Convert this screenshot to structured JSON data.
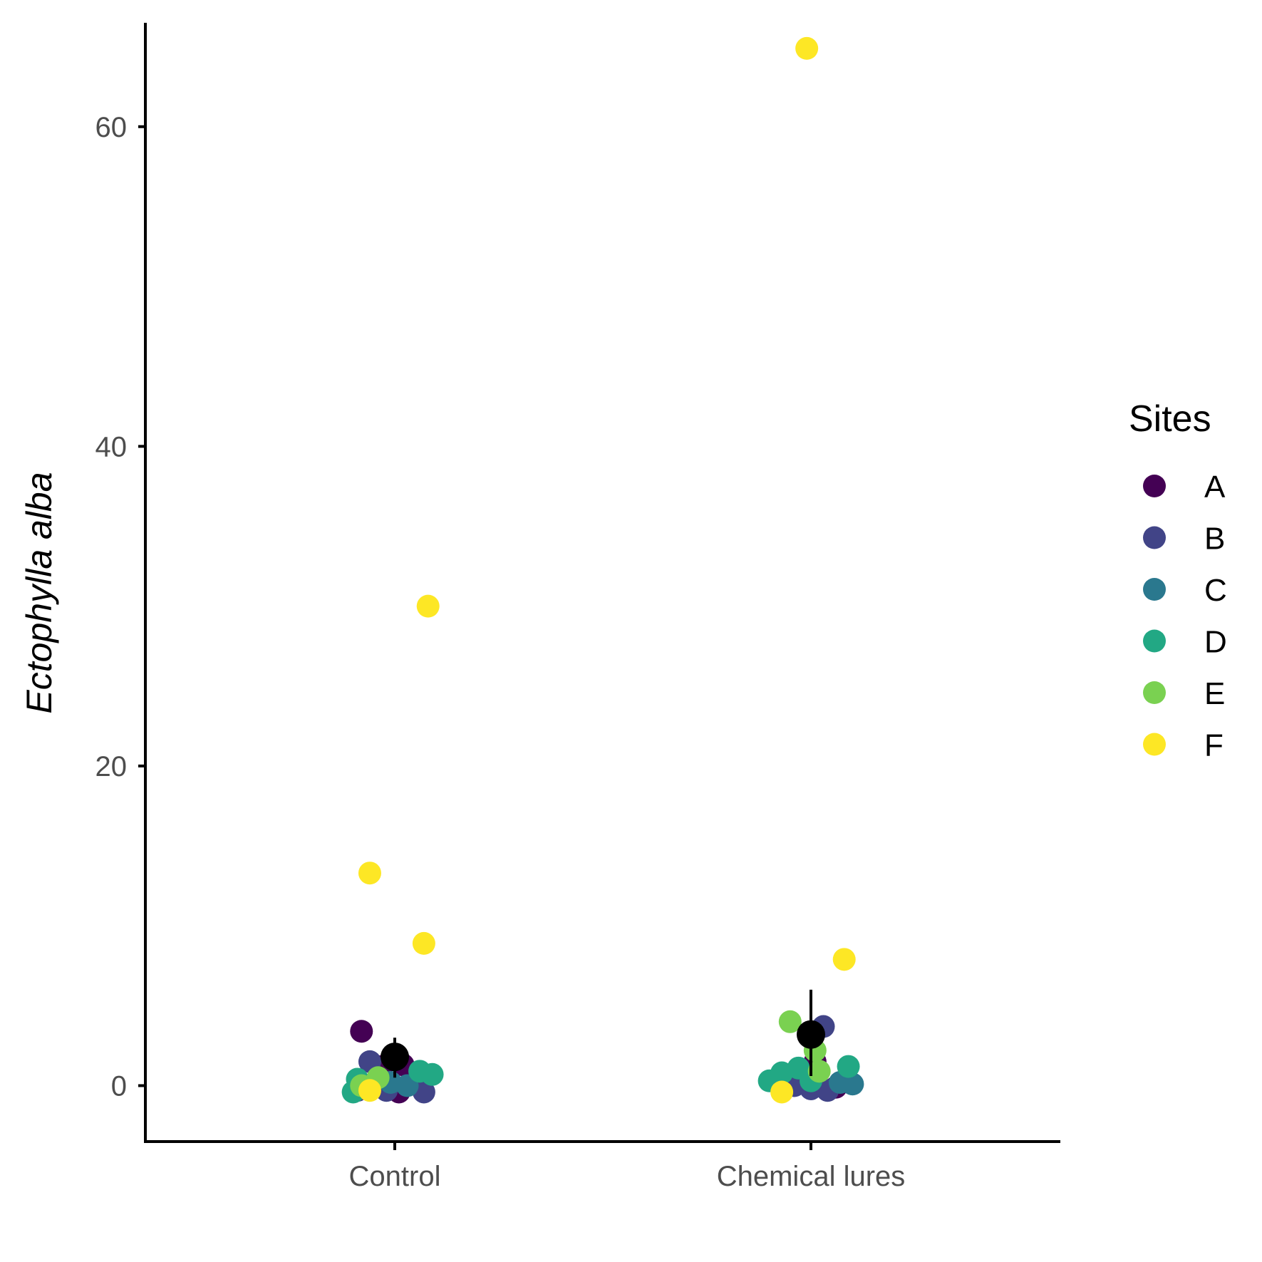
{
  "chart_data": {
    "type": "scatter",
    "title": "",
    "xlabel": "",
    "ylabel": "Ectophylla alba",
    "categories": [
      "Control",
      "Chemical lures"
    ],
    "ylim": [
      -3.5,
      66.5
    ],
    "yticks": [
      0,
      20,
      40,
      60
    ],
    "grid": false,
    "legend": {
      "title": "Sites",
      "placement": "right",
      "entries": [
        {
          "name": "A",
          "color": "#440154"
        },
        {
          "name": "B",
          "color": "#414487"
        },
        {
          "name": "C",
          "color": "#2A788E"
        },
        {
          "name": "D",
          "color": "#22A884"
        },
        {
          "name": "E",
          "color": "#7AD151"
        },
        {
          "name": "F",
          "color": "#FDE725"
        }
      ]
    },
    "series": [
      {
        "name": "A",
        "color": "#440154",
        "points": [
          {
            "x": -0.08,
            "y": 3.4
          },
          {
            "x": -0.03,
            "y": 1.2
          },
          {
            "x": 0.01,
            "y": -0.4
          },
          {
            "x": 0.02,
            "y": 1.3
          },
          {
            "x": 1.01,
            "y": 1.5
          },
          {
            "x": 1.06,
            "y": -0.1
          }
        ]
      },
      {
        "name": "B",
        "color": "#414487",
        "points": [
          {
            "x": -0.06,
            "y": 1.5
          },
          {
            "x": -0.09,
            "y": -0.3
          },
          {
            "x": -0.02,
            "y": -0.3
          },
          {
            "x": 0.07,
            "y": -0.4
          },
          {
            "x": 1.03,
            "y": 3.7
          },
          {
            "x": 0.96,
            "y": 0.0
          },
          {
            "x": 1.0,
            "y": -0.2
          },
          {
            "x": 1.04,
            "y": -0.3
          }
        ]
      },
      {
        "name": "C",
        "color": "#2A788E",
        "points": [
          {
            "x": 0.03,
            "y": 0.0
          },
          {
            "x": -0.01,
            "y": 0.2
          },
          {
            "x": 1.1,
            "y": 0.1
          },
          {
            "x": 1.07,
            "y": 0.2
          }
        ]
      },
      {
        "name": "D",
        "color": "#22A884",
        "points": [
          {
            "x": -0.1,
            "y": -0.4
          },
          {
            "x": 0.06,
            "y": 0.9
          },
          {
            "x": 0.09,
            "y": 0.7
          },
          {
            "x": -0.09,
            "y": 0.4
          },
          {
            "x": 0.93,
            "y": 0.8
          },
          {
            "x": 0.9,
            "y": 0.3
          },
          {
            "x": 0.97,
            "y": 1.1
          },
          {
            "x": 1.09,
            "y": 1.2
          },
          {
            "x": 1.0,
            "y": 0.3
          }
        ]
      },
      {
        "name": "E",
        "color": "#7AD151",
        "points": [
          {
            "x": -0.04,
            "y": 0.5
          },
          {
            "x": -0.08,
            "y": 0.0
          },
          {
            "x": 0.95,
            "y": 4.0
          },
          {
            "x": 1.01,
            "y": 2.2
          },
          {
            "x": 1.02,
            "y": 0.9
          }
        ]
      },
      {
        "name": "F",
        "color": "#FDE725",
        "points": [
          {
            "x": 0.08,
            "y": 30.0
          },
          {
            "x": -0.06,
            "y": 13.3
          },
          {
            "x": 0.07,
            "y": 8.9
          },
          {
            "x": -0.06,
            "y": -0.3
          },
          {
            "x": 0.99,
            "y": 64.9
          },
          {
            "x": 1.08,
            "y": 7.9
          },
          {
            "x": 0.93,
            "y": -0.4
          }
        ]
      }
    ],
    "summary": [
      {
        "category": "Control",
        "mean": 1.8,
        "lower": 0.5,
        "upper": 3.0,
        "color": "#000000"
      },
      {
        "category": "Chemical lures",
        "mean": 3.2,
        "lower": 0.6,
        "upper": 6.0,
        "color": "#000000"
      }
    ]
  }
}
